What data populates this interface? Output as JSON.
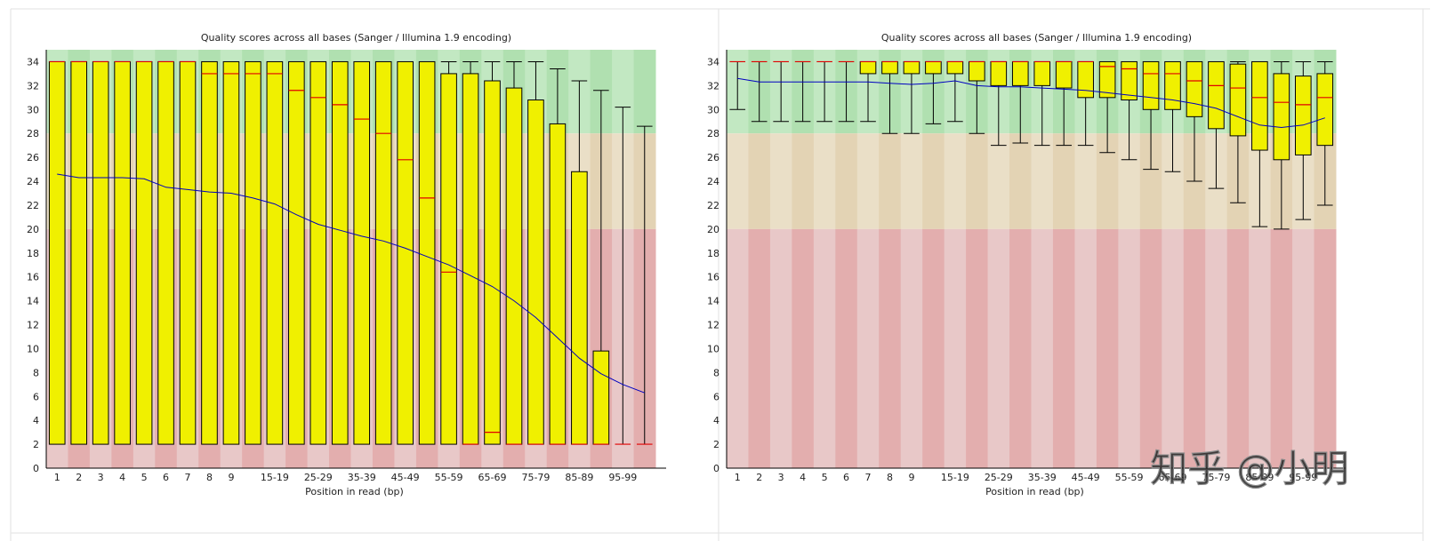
{
  "colors": {
    "good": "#c2e8c2",
    "good_alt": "#b0e0b0",
    "ok": "#eadfc7",
    "ok_alt": "#e3d3b4",
    "bad": "#e8c8c8",
    "bad_alt": "#e3aeae",
    "box": "#f0f000",
    "median": "#e00000",
    "mean": "#0000c0"
  },
  "watermark": "知乎 @小明",
  "chart_data": [
    {
      "type": "boxplot",
      "title": "Quality scores across all bases (Sanger / Illumina 1.9 encoding)",
      "xlabel": "Position in read (bp)",
      "ylabel": "",
      "ylim": [
        0,
        35
      ],
      "yticks": [
        0,
        2,
        4,
        6,
        8,
        10,
        12,
        14,
        16,
        18,
        20,
        22,
        24,
        26,
        28,
        30,
        32,
        34
      ],
      "zones": [
        {
          "name": "good",
          "from": 28,
          "to": 35
        },
        {
          "name": "ok",
          "from": 20,
          "to": 28
        },
        {
          "name": "bad",
          "from": 0,
          "to": 20
        }
      ],
      "categories": [
        "1",
        "2",
        "3",
        "4",
        "5",
        "6",
        "7",
        "8",
        "9",
        "10-14",
        "15-19",
        "20-24",
        "25-29",
        "30-34",
        "35-39",
        "40-44",
        "45-49",
        "50-54",
        "55-59",
        "60-64",
        "65-69",
        "70-74",
        "75-79",
        "80-84",
        "85-89",
        "90-94",
        "95-99",
        "100-101"
      ],
      "tick_labels": [
        "1",
        "2",
        "3",
        "4",
        "5",
        "6",
        "7",
        "8",
        "9",
        "",
        "15-19",
        "",
        "25-29",
        "",
        "35-39",
        "",
        "45-49",
        "",
        "55-59",
        "",
        "65-69",
        "",
        "75-79",
        "",
        "85-89",
        "",
        "95-99",
        ""
      ],
      "q1": [
        2,
        2,
        2,
        2,
        2,
        2,
        2,
        2,
        2,
        2,
        2,
        2,
        2,
        2,
        2,
        2,
        2,
        2,
        2,
        2,
        2,
        2,
        2,
        2,
        2,
        2,
        2,
        2
      ],
      "q3": [
        34,
        34,
        34,
        34,
        34,
        34,
        34,
        34,
        34,
        34,
        34,
        34,
        34,
        34,
        34,
        34,
        34,
        34,
        33,
        33,
        32.4,
        31.8,
        30.8,
        28.8,
        24.8,
        9.8,
        2,
        2
      ],
      "median": [
        34,
        34,
        34,
        34,
        34,
        34,
        34,
        33,
        33,
        33,
        33,
        31.6,
        31,
        30.4,
        29.2,
        28,
        25.8,
        22.6,
        16.4,
        2,
        3,
        2,
        2,
        2,
        2,
        2,
        2,
        2
      ],
      "whisker_low": [
        2,
        2,
        2,
        2,
        2,
        2,
        2,
        2,
        2,
        2,
        2,
        2,
        2,
        2,
        2,
        2,
        2,
        2,
        2,
        2,
        2,
        2,
        2,
        2,
        2,
        2,
        2,
        2
      ],
      "whisker_high": [
        34,
        34,
        34,
        34,
        34,
        34,
        34,
        34,
        34,
        34,
        34,
        34,
        34,
        34,
        34,
        34,
        34,
        34,
        34,
        34,
        34,
        34,
        34,
        33.4,
        32.4,
        31.6,
        30.2,
        28.6
      ],
      "mean": [
        24.6,
        24.3,
        24.3,
        24.3,
        24.2,
        23.5,
        23.3,
        23.1,
        23,
        22.6,
        22.1,
        21.2,
        20.4,
        19.9,
        19.4,
        19,
        18.4,
        17.7,
        17,
        16.1,
        15.2,
        14,
        12.6,
        10.9,
        9.2,
        7.9,
        7,
        6.3
      ]
    },
    {
      "type": "boxplot",
      "title": "Quality scores across all bases (Sanger / Illumina 1.9 encoding)",
      "xlabel": "Position in read (bp)",
      "ylabel": "",
      "ylim": [
        0,
        35
      ],
      "yticks": [
        0,
        2,
        4,
        6,
        8,
        10,
        12,
        14,
        16,
        18,
        20,
        22,
        24,
        26,
        28,
        30,
        32,
        34
      ],
      "zones": [
        {
          "name": "good",
          "from": 28,
          "to": 35
        },
        {
          "name": "ok",
          "from": 20,
          "to": 28
        },
        {
          "name": "bad",
          "from": 0,
          "to": 20
        }
      ],
      "categories": [
        "1",
        "2",
        "3",
        "4",
        "5",
        "6",
        "7",
        "8",
        "9",
        "10-14",
        "15-19",
        "20-24",
        "25-29",
        "30-34",
        "35-39",
        "40-44",
        "45-49",
        "50-54",
        "55-59",
        "60-64",
        "65-69",
        "70-74",
        "75-79",
        "80-84",
        "85-89",
        "90-94",
        "95-99",
        "100-101"
      ],
      "tick_labels": [
        "1",
        "2",
        "3",
        "4",
        "5",
        "6",
        "7",
        "8",
        "9",
        "",
        "15-19",
        "",
        "25-29",
        "",
        "35-39",
        "",
        "45-49",
        "",
        "55-59",
        "",
        "65-69",
        "",
        "75-79",
        "",
        "85-89",
        "",
        "95-99",
        ""
      ],
      "q1": [
        34,
        34,
        34,
        34,
        34,
        34,
        33,
        33,
        33,
        33,
        33,
        32.4,
        32,
        32,
        32,
        31.8,
        31,
        31,
        30.8,
        30,
        30,
        29.4,
        28.4,
        27.8,
        26.6,
        25.8,
        26.2,
        27
      ],
      "q3": [
        34,
        34,
        34,
        34,
        34,
        34,
        34,
        34,
        34,
        34,
        34,
        34,
        34,
        34,
        34,
        34,
        34,
        34,
        34,
        34,
        34,
        34,
        34,
        33.8,
        34,
        33,
        32.8,
        33
      ],
      "median": [
        34,
        34,
        34,
        34,
        34,
        34,
        34,
        34,
        34,
        34,
        34,
        34,
        34,
        34,
        34,
        34,
        34,
        33.6,
        33.4,
        33,
        33,
        32.4,
        32,
        31.8,
        31,
        30.6,
        30.4,
        31
      ],
      "whisker_low": [
        30,
        29,
        29,
        29,
        29,
        29,
        29,
        28,
        28,
        28.8,
        29,
        28,
        27,
        27.2,
        27,
        27,
        27,
        26.4,
        25.8,
        25,
        24.8,
        24,
        23.4,
        22.2,
        20.2,
        20,
        20.8,
        22
      ],
      "whisker_high": [
        34,
        34,
        34,
        34,
        34,
        34,
        34,
        34,
        34,
        34,
        34,
        34,
        34,
        34,
        34,
        34,
        34,
        34,
        34,
        34,
        34,
        34,
        34,
        34,
        34,
        34,
        34,
        34
      ],
      "mean": [
        32.6,
        32.3,
        32.3,
        32.3,
        32.3,
        32.3,
        32.3,
        32.2,
        32.1,
        32.2,
        32.4,
        32,
        31.9,
        31.9,
        31.8,
        31.7,
        31.6,
        31.4,
        31.2,
        31,
        30.8,
        30.5,
        30.1,
        29.4,
        28.7,
        28.5,
        28.7,
        29.3
      ]
    }
  ]
}
